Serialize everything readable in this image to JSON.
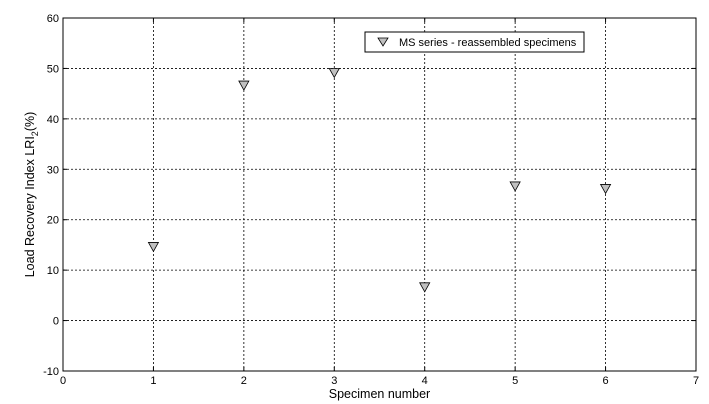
{
  "chart_data": {
    "type": "scatter",
    "xlabel": "Specimen number",
    "ylabel_main": "Load Recovery Index LRI",
    "ylabel_subscript": "2",
    "ylabel_suffix": "(%)",
    "xlim": [
      0,
      7
    ],
    "ylim": [
      -10,
      60
    ],
    "xticks": [
      "0",
      "1",
      "2",
      "3",
      "4",
      "5",
      "6",
      "7"
    ],
    "yticks": [
      "-10",
      "0",
      "10",
      "20",
      "30",
      "40",
      "50",
      "60"
    ],
    "grid": true,
    "legend_placement": "top-right",
    "series": [
      {
        "name": "MS series - reassembled specimens",
        "marker": "triangle-down",
        "marker_color": "#c0c0c0",
        "x": [
          1,
          2,
          3,
          4,
          5,
          6
        ],
        "y": [
          14.5,
          46.5,
          49,
          6.5,
          26.5,
          26
        ]
      }
    ]
  }
}
